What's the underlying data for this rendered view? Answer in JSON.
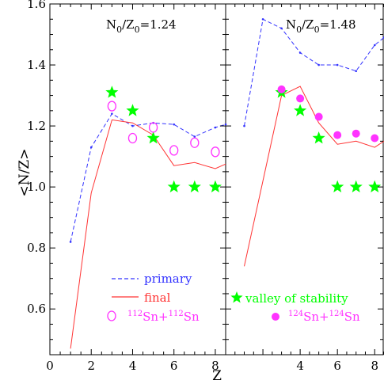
{
  "chart_data": {
    "type": "line",
    "xlabel": "Z",
    "ylabel": "<N/Z>",
    "xlim": [
      0,
      8.5
    ],
    "ylim": [
      0.45,
      1.6
    ],
    "xticks": [
      "0",
      "2",
      "4",
      "6",
      "8"
    ],
    "yticks": [
      "0.6",
      "0.8",
      "1.0",
      "1.2",
      "1.4",
      "1.6"
    ],
    "colors": {
      "primary": "#3333ff",
      "final": "#ff3333",
      "stability": "#00ff00",
      "sn_data": "#ff33ff"
    },
    "panels": [
      {
        "annotation": {
          "prefix": "N",
          "sub1": "0",
          "mid": "/Z",
          "sub2": "0",
          "value": "=1.24"
        },
        "series": [
          {
            "name": "primary",
            "style": "dashed",
            "x": [
              1,
              2,
              3,
              4,
              5,
              6,
              7,
              8,
              8.5
            ],
            "y": [
              0.82,
              1.13,
              1.24,
              1.2,
              1.21,
              1.205,
              1.165,
              1.195,
              1.205
            ]
          },
          {
            "name": "final",
            "style": "solid",
            "x": [
              1,
              2,
              3,
              4,
              5,
              6,
              7,
              8,
              8.5
            ],
            "y": [
              0.47,
              0.98,
              1.22,
              1.21,
              1.17,
              1.07,
              1.08,
              1.06,
              1.075
            ]
          }
        ],
        "stars": {
          "x": [
            3,
            4,
            5,
            6,
            7,
            8
          ],
          "y": [
            1.31,
            1.25,
            1.16,
            1.0,
            1.0,
            1.0
          ]
        },
        "sn": {
          "filled": false,
          "x": [
            3,
            4,
            5,
            6,
            7,
            8
          ],
          "y": [
            1.265,
            1.16,
            1.195,
            1.12,
            1.145,
            1.115
          ]
        },
        "legend": {
          "primary_label": "primary",
          "final_label": "final",
          "sn": {
            "sup1": "112",
            "el1": "Sn+",
            "sup2": "112",
            "el2": "Sn"
          }
        }
      },
      {
        "annotation": {
          "prefix": "N",
          "sub1": "0",
          "mid": "/Z",
          "sub2": "0",
          "value": "=1.48"
        },
        "series": [
          {
            "name": "primary",
            "style": "dashed",
            "x": [
              1,
              2,
              3,
              4,
              5,
              6,
              7,
              8,
              8.5
            ],
            "y": [
              1.2,
              1.55,
              1.52,
              1.44,
              1.4,
              1.4,
              1.38,
              1.465,
              1.49
            ]
          },
          {
            "name": "final",
            "style": "solid",
            "x": [
              1,
              2,
              3,
              4,
              5,
              6,
              7,
              8,
              8.5
            ],
            "y": [
              0.74,
              1.02,
              1.3,
              1.33,
              1.21,
              1.14,
              1.15,
              1.13,
              1.15
            ]
          }
        ],
        "stars": {
          "x": [
            3,
            4,
            5,
            6,
            7,
            8
          ],
          "y": [
            1.31,
            1.25,
            1.16,
            1.0,
            1.0,
            1.0
          ]
        },
        "sn": {
          "filled": true,
          "x": [
            3,
            4,
            5,
            6,
            7,
            8
          ],
          "y": [
            1.32,
            1.29,
            1.23,
            1.17,
            1.175,
            1.16
          ]
        },
        "legend": {
          "stability_label": "valley of stability",
          "sn": {
            "sup1": "124",
            "el1": "Sn+",
            "sup2": "124",
            "el2": "Sn"
          }
        }
      }
    ]
  }
}
